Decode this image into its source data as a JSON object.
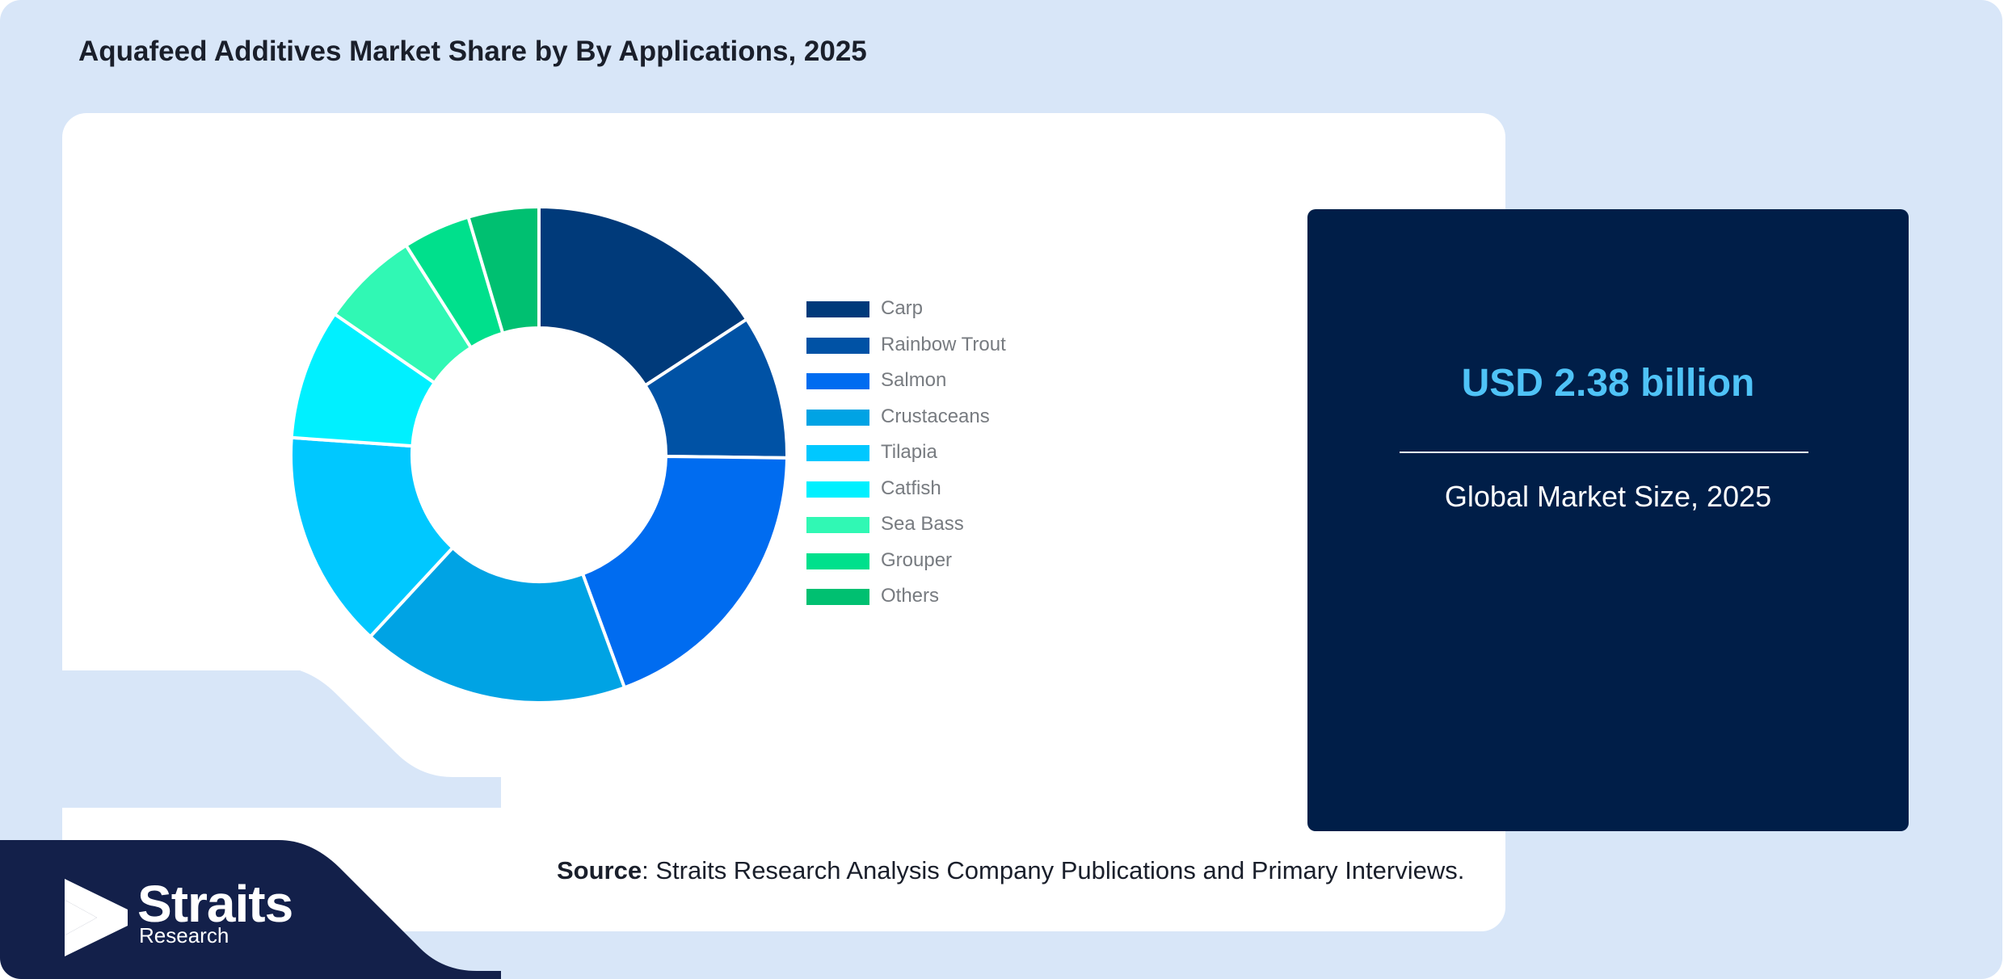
{
  "header": {
    "title": "Aquafeed Additives Market Share by By Applications, 2025"
  },
  "chart_data": {
    "type": "pie",
    "variant": "donut",
    "categories": [
      "Carp",
      "Rainbow Trout",
      "Salmon",
      "Crustaceans",
      "Tilapia",
      "Catfish",
      "Sea Bass",
      "Grouper",
      "Others"
    ],
    "values": [
      15.8,
      9.4,
      19.2,
      17.5,
      14.2,
      8.5,
      6.4,
      4.4,
      4.6
    ],
    "colors": [
      "#003a7a",
      "#0052a5",
      "#006cf0",
      "#00a3e4",
      "#00c8ff",
      "#00f0ff",
      "#30f8b4",
      "#00e08c",
      "#00c071"
    ],
    "legend_position": "right"
  },
  "summary": {
    "market_value": "USD 2.38 billion",
    "market_label": "Global Market Size, 2025"
  },
  "footer": {
    "source_label": "Source",
    "source_text": ": Straits Research Analysis Company Publications and Primary Interviews."
  },
  "brand": {
    "name": "Straits",
    "sub": "Research",
    "logo_icon": "straits-arrow-icon"
  },
  "colors": {
    "background": "#d8e6f8",
    "dark_panel": "#001e48",
    "accent": "#4fc3f7",
    "brand_band": "#13204a"
  }
}
